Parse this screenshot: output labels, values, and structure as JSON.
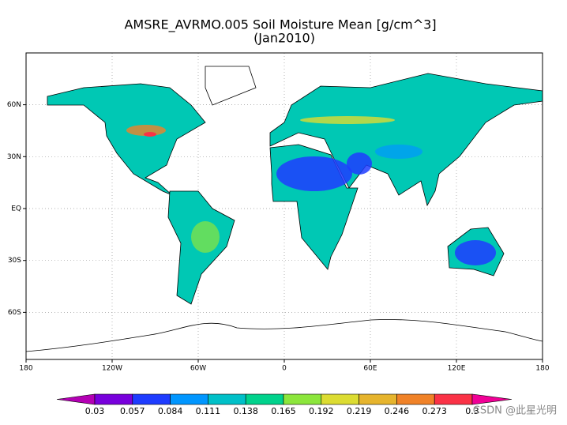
{
  "title": "AMSRE_AVRMO.005 Soil Moisture Mean [g/cm^3]",
  "subtitle": "(Jan2010)",
  "map": {
    "xticks": [
      {
        "value": -180,
        "label": "180"
      },
      {
        "value": -120,
        "label": "120W"
      },
      {
        "value": -60,
        "label": "60W"
      },
      0,
      {
        "value": 60,
        "label": "60E"
      },
      {
        "value": 120,
        "label": "120E"
      },
      {
        "value": 180,
        "label": "180"
      }
    ],
    "yticks": [
      {
        "value": 60,
        "label": "60N"
      },
      {
        "value": 30,
        "label": "30N"
      },
      {
        "value": 0,
        "label": "EQ"
      },
      {
        "value": -30,
        "label": "30S"
      },
      {
        "value": -60,
        "label": "60S"
      }
    ],
    "grid": true
  },
  "colorbar": {
    "levels": [
      0.03,
      0.057,
      0.084,
      0.111,
      0.138,
      0.165,
      0.192,
      0.219,
      0.246,
      0.273,
      0.3
    ],
    "colors": [
      "#b400b4",
      "#7800dc",
      "#1e3cff",
      "#0096ff",
      "#00c0c8",
      "#00d28c",
      "#8ce63c",
      "#dcdc32",
      "#e6b42d",
      "#f08228",
      "#fa3246",
      "#f00096"
    ]
  },
  "watermark": "CSDN @此星光明"
}
